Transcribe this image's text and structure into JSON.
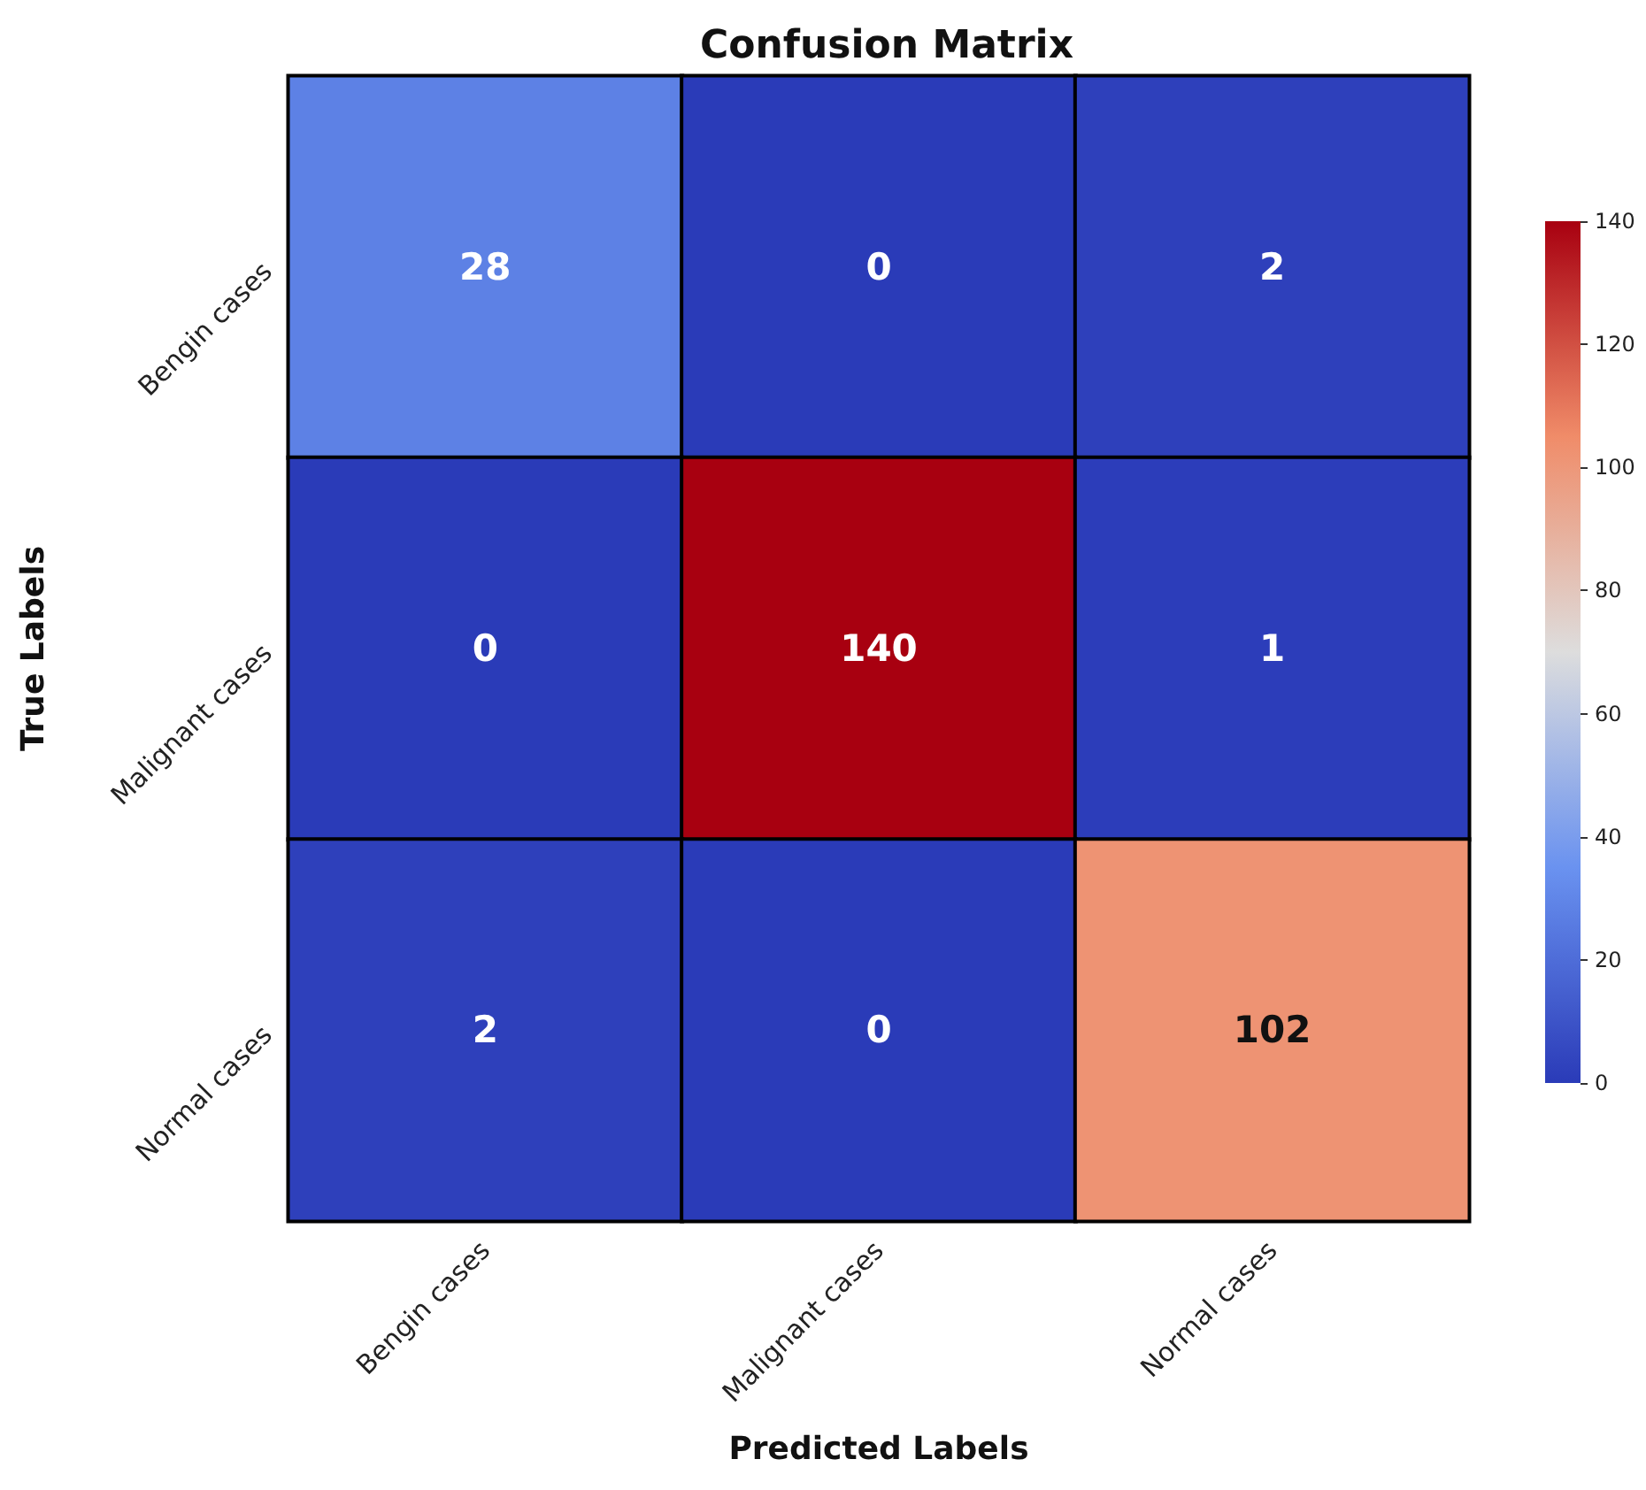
{
  "chart_data": {
    "type": "heatmap",
    "title": "Confusion Matrix",
    "xlabel": "Predicted Labels",
    "ylabel": "True Labels",
    "categories": [
      "Bengin cases",
      "Malignant cases",
      "Normal cases"
    ],
    "y_categories": [
      "Bengin cases",
      "Malignant cases",
      "Normal cases"
    ],
    "cells": [
      [
        28,
        0,
        2
      ],
      [
        0,
        140,
        1
      ],
      [
        2,
        0,
        102
      ]
    ],
    "data_labels": true,
    "clim": [
      0,
      140
    ],
    "cticks": [
      0,
      20,
      40,
      60,
      80,
      100,
      120,
      140
    ]
  }
}
